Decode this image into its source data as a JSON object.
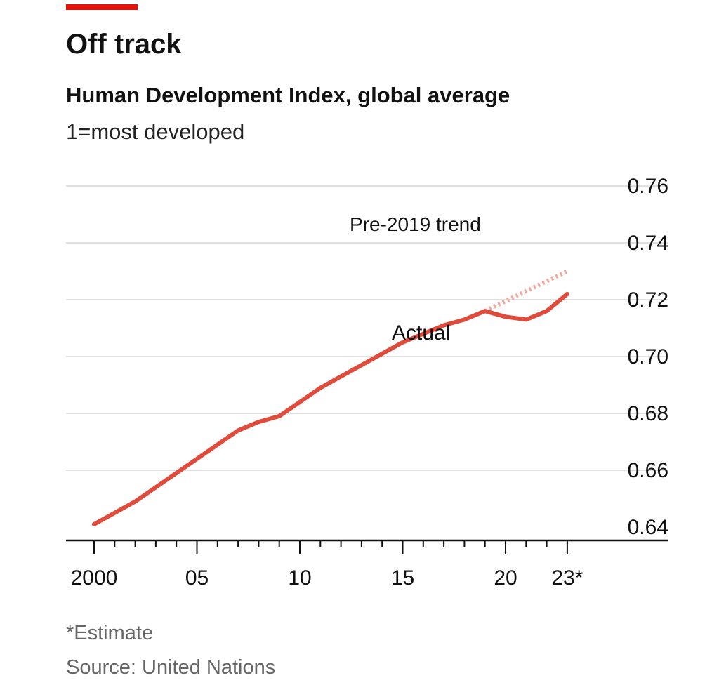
{
  "colors": {
    "accent": "#E3120B",
    "actual_line": "#E04B3C",
    "trend_line": "#F2A89D",
    "gridline": "#D5D5D5",
    "axis": "#111111"
  },
  "header": {
    "title": "Off track",
    "subtitle": "Human Development Index, global average",
    "note": "1=most developed"
  },
  "footer": {
    "estimate_note": "*Estimate",
    "source": "Source: United Nations"
  },
  "chart_data": {
    "type": "line",
    "title": "Off track",
    "subtitle": "Human Development Index, global average",
    "xlabel": "",
    "ylabel": "",
    "xlim": [
      2000,
      2023
    ],
    "ylim": [
      0.63,
      0.76
    ],
    "grid": true,
    "y_axis_side": "right",
    "yticks": [
      0.64,
      0.66,
      0.68,
      0.7,
      0.72,
      0.74,
      0.76
    ],
    "ytick_labels": [
      "0.64",
      "0.66",
      "0.68",
      "0.70",
      "0.72",
      "0.74",
      "0.76"
    ],
    "xticks_major": [
      2000,
      2005,
      2010,
      2015,
      2020,
      2023
    ],
    "xtick_labels": [
      "2000",
      "05",
      "10",
      "15",
      "20",
      "23*"
    ],
    "x_minor_ticks": [
      2001,
      2002,
      2003,
      2004,
      2006,
      2007,
      2008,
      2009,
      2011,
      2012,
      2013,
      2014,
      2016,
      2017,
      2018,
      2019,
      2021,
      2022
    ],
    "series": [
      {
        "name": "Actual",
        "style": "solid",
        "x": [
          2000,
          2001,
          2002,
          2003,
          2004,
          2005,
          2006,
          2007,
          2008,
          2009,
          2010,
          2011,
          2012,
          2013,
          2014,
          2015,
          2016,
          2017,
          2018,
          2019,
          2020,
          2021,
          2022,
          2023
        ],
        "y": [
          0.641,
          0.645,
          0.649,
          0.654,
          0.659,
          0.664,
          0.669,
          0.674,
          0.677,
          0.679,
          0.684,
          0.689,
          0.693,
          0.697,
          0.701,
          0.705,
          0.708,
          0.711,
          0.713,
          0.716,
          0.714,
          0.713,
          0.716,
          0.722
        ]
      },
      {
        "name": "Pre-2019 trend",
        "style": "dotted",
        "x": [
          2019,
          2023
        ],
        "y": [
          0.716,
          0.73
        ]
      }
    ],
    "annotations": [
      {
        "text": "Pre-2019 trend",
        "series": "Pre-2019 trend"
      },
      {
        "text": "Actual",
        "series": "Actual"
      }
    ]
  }
}
